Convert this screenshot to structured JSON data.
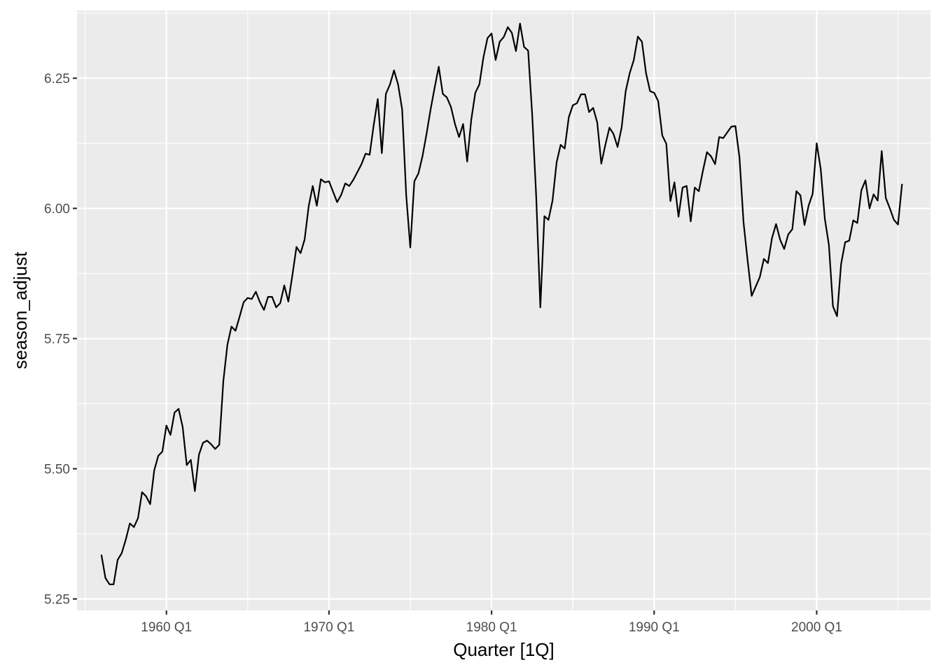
{
  "chart_data": {
    "type": "line",
    "title": "",
    "xlabel": "Quarter [1Q]",
    "ylabel": "season_adjust",
    "x_start_quarter": "1956 Q1",
    "x_tick_labels": [
      "1960 Q1",
      "1970 Q1",
      "1980 Q1",
      "1990 Q1",
      "2000 Q1"
    ],
    "y_tick_labels": [
      "5.25",
      "5.50",
      "5.75",
      "6.00",
      "6.25"
    ],
    "y_ticks": [
      5.25,
      5.5,
      5.75,
      6.0,
      6.25
    ],
    "xlim": [
      "1954 Q3",
      "2007 Q1"
    ],
    "ylim": [
      5.228,
      6.38
    ],
    "grid": true,
    "background": "#ebebeb",
    "line_color": "#000000",
    "series": [
      {
        "values": [
          5.335,
          5.29,
          5.278,
          5.278,
          5.325,
          5.338,
          5.364,
          5.395,
          5.388,
          5.405,
          5.455,
          5.447,
          5.432,
          5.497,
          5.525,
          5.533,
          5.583,
          5.565,
          5.608,
          5.615,
          5.58,
          5.507,
          5.517,
          5.457,
          5.527,
          5.55,
          5.554,
          5.547,
          5.538,
          5.546,
          5.668,
          5.738,
          5.773,
          5.765,
          5.792,
          5.82,
          5.828,
          5.826,
          5.84,
          5.82,
          5.805,
          5.83,
          5.83,
          5.81,
          5.818,
          5.852,
          5.821,
          5.872,
          5.926,
          5.914,
          5.94,
          6.004,
          6.043,
          6.005,
          6.056,
          6.05,
          6.052,
          6.032,
          6.012,
          6.026,
          6.048,
          6.043,
          6.055,
          6.07,
          6.085,
          6.105,
          6.103,
          6.16,
          6.21,
          6.106,
          6.22,
          6.238,
          6.265,
          6.238,
          6.19,
          6.025,
          5.925,
          6.052,
          6.067,
          6.1,
          6.143,
          6.19,
          6.232,
          6.272,
          6.22,
          6.213,
          6.195,
          6.162,
          6.137,
          6.162,
          6.09,
          6.17,
          6.222,
          6.238,
          6.29,
          6.327,
          6.336,
          6.285,
          6.32,
          6.329,
          6.348,
          6.337,
          6.302,
          6.355,
          6.31,
          6.303,
          6.18,
          6.02,
          5.81,
          5.985,
          5.978,
          6.015,
          6.088,
          6.122,
          6.115,
          6.175,
          6.198,
          6.202,
          6.219,
          6.219,
          6.185,
          6.193,
          6.165,
          6.086,
          6.122,
          6.155,
          6.143,
          6.118,
          6.155,
          6.225,
          6.26,
          6.285,
          6.33,
          6.32,
          6.26,
          6.225,
          6.222,
          6.206,
          6.14,
          6.124,
          6.014,
          6.05,
          5.984,
          6.04,
          6.043,
          5.975,
          6.04,
          6.033,
          6.072,
          6.108,
          6.1,
          6.085,
          6.137,
          6.135,
          6.146,
          6.157,
          6.158,
          6.098,
          5.973,
          5.9,
          5.832,
          5.85,
          5.868,
          5.903,
          5.895,
          5.943,
          5.97,
          5.94,
          5.922,
          5.95,
          5.96,
          6.033,
          6.025,
          5.968,
          6.005,
          6.028,
          6.125,
          6.075,
          5.98,
          5.93,
          5.812,
          5.793,
          5.893,
          5.935,
          5.938,
          5.977,
          5.972,
          6.035,
          6.054,
          6.0,
          6.027,
          6.015,
          6.11,
          6.02,
          6.0,
          5.978,
          5.969,
          6.047
        ]
      }
    ]
  }
}
